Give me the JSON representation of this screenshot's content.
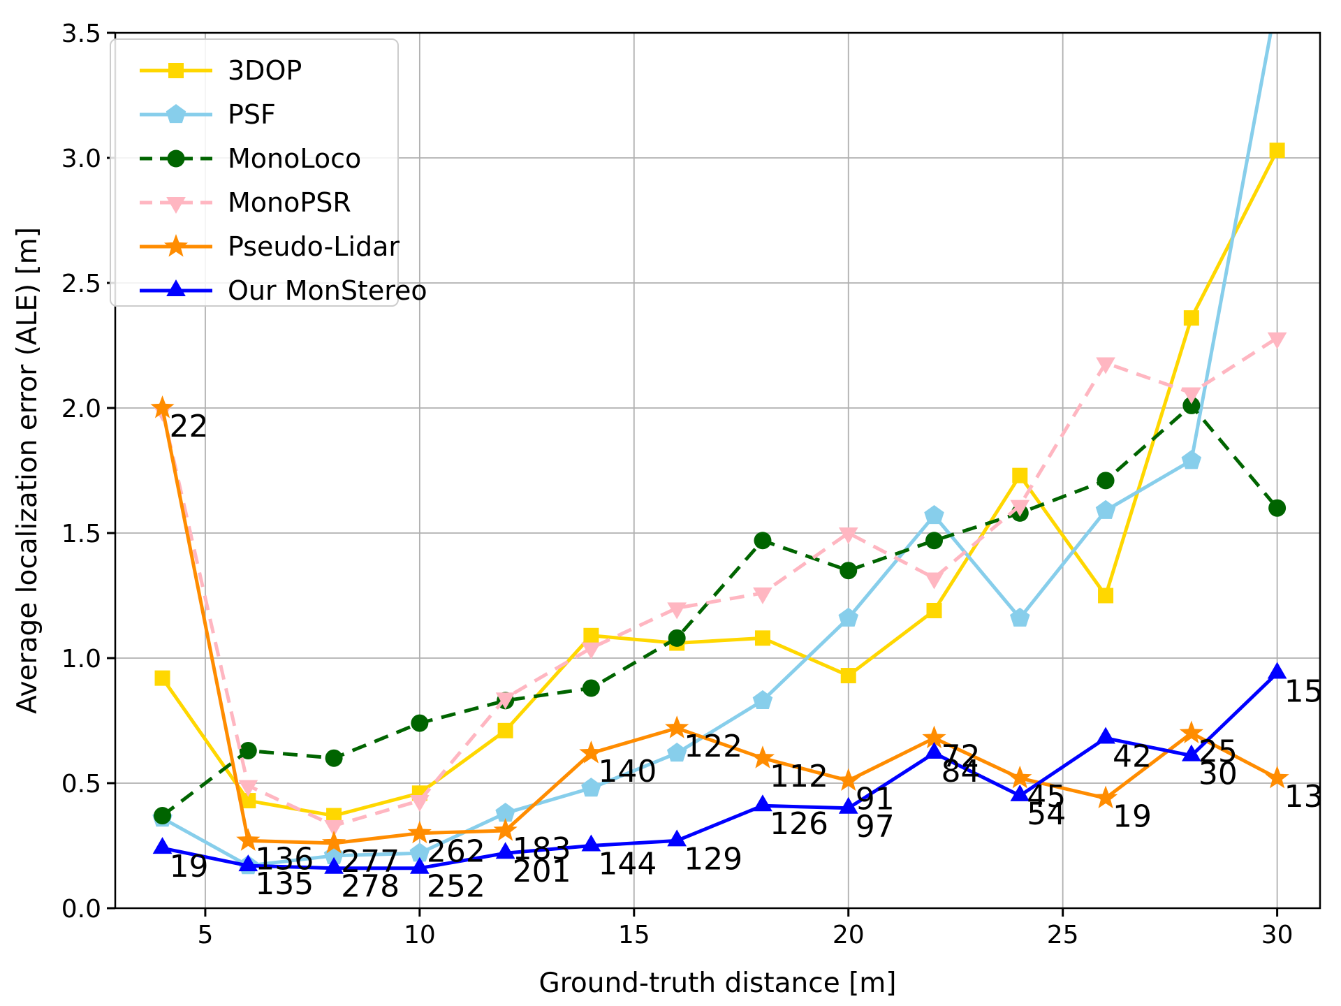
{
  "figure": {
    "background": "#FFFFFF",
    "grid_color": "#B0B0B0",
    "spine_color": "#000000",
    "text_color": "#000000"
  },
  "chart_data": {
    "type": "line",
    "title": "",
    "xlabel": "Ground-truth distance [m]",
    "ylabel": "Average localization error (ALE) [m]",
    "x": [
      4,
      6,
      8,
      10,
      12,
      14,
      16,
      18,
      20,
      22,
      24,
      26,
      28,
      30
    ],
    "xlim": [
      2.9,
      31.0
    ],
    "ylim": [
      0.0,
      3.5
    ],
    "grid": true,
    "xticks": {
      "values": [
        5,
        10,
        15,
        20,
        25,
        30
      ],
      "labels": [
        "5",
        "10",
        "15",
        "20",
        "25",
        "30"
      ]
    },
    "yticks": {
      "values": [
        0.0,
        0.5,
        1.0,
        1.5,
        2.0,
        2.5,
        3.0,
        3.5
      ],
      "labels": [
        "0.0",
        "0.5",
        "1.0",
        "1.5",
        "2.0",
        "2.5",
        "3.0",
        "3.5"
      ]
    },
    "legend": {
      "position": "upper left",
      "entries": [
        "3DOP",
        "PSF",
        "MonoLoco",
        "MonoPSR",
        "Pseudo-Lidar",
        "Our MonStereo"
      ]
    },
    "series": [
      {
        "name": "3DOP",
        "color": "#FFD700",
        "marker": "square",
        "line_style": "solid",
        "values": [
          0.92,
          0.43,
          0.37,
          0.46,
          0.71,
          1.09,
          1.06,
          1.08,
          0.93,
          1.19,
          1.73,
          1.25,
          2.36,
          3.03
        ]
      },
      {
        "name": "PSF",
        "color": "#87CEEB",
        "marker": "pentagon",
        "line_style": "solid",
        "values": [
          0.36,
          0.17,
          0.21,
          0.22,
          0.38,
          0.48,
          0.62,
          0.83,
          1.16,
          1.57,
          1.16,
          1.59,
          1.79,
          3.64
        ]
      },
      {
        "name": "MonoLoco",
        "color": "#006400",
        "marker": "circle",
        "line_style": "dashed",
        "values": [
          0.37,
          0.63,
          0.6,
          0.74,
          0.83,
          0.88,
          1.08,
          1.47,
          1.35,
          1.47,
          1.58,
          1.71,
          2.01,
          1.6
        ]
      },
      {
        "name": "MonoPSR",
        "color": "#FFB6C1",
        "marker": "triangle-down",
        "line_style": "dashed",
        "values": [
          1.99,
          0.49,
          0.33,
          0.43,
          0.84,
          1.04,
          1.2,
          1.26,
          1.5,
          1.32,
          1.61,
          2.18,
          2.06,
          2.28
        ]
      },
      {
        "name": "Pseudo-Lidar",
        "color": "#FF8C00",
        "marker": "star",
        "line_style": "solid",
        "values": [
          2.0,
          0.27,
          0.26,
          0.3,
          0.31,
          0.62,
          0.72,
          0.6,
          0.51,
          0.68,
          0.52,
          0.44,
          0.7,
          0.52
        ]
      },
      {
        "name": "Our MonStereo",
        "color": "#0000FF",
        "marker": "triangle-up",
        "line_style": "solid",
        "values": [
          0.24,
          0.17,
          0.16,
          0.16,
          0.22,
          0.25,
          0.27,
          0.41,
          0.4,
          0.62,
          0.45,
          0.68,
          0.61,
          0.94
        ]
      }
    ],
    "annotations": [
      {
        "series": "Pseudo-Lidar",
        "counts": [
          22,
          136,
          277,
          262,
          183,
          140,
          122,
          112,
          91,
          72,
          45,
          19,
          25,
          13
        ]
      },
      {
        "series": "Our MonStereo",
        "counts": [
          19,
          135,
          278,
          252,
          201,
          144,
          129,
          126,
          97,
          84,
          54,
          42,
          30,
          15
        ]
      }
    ]
  }
}
